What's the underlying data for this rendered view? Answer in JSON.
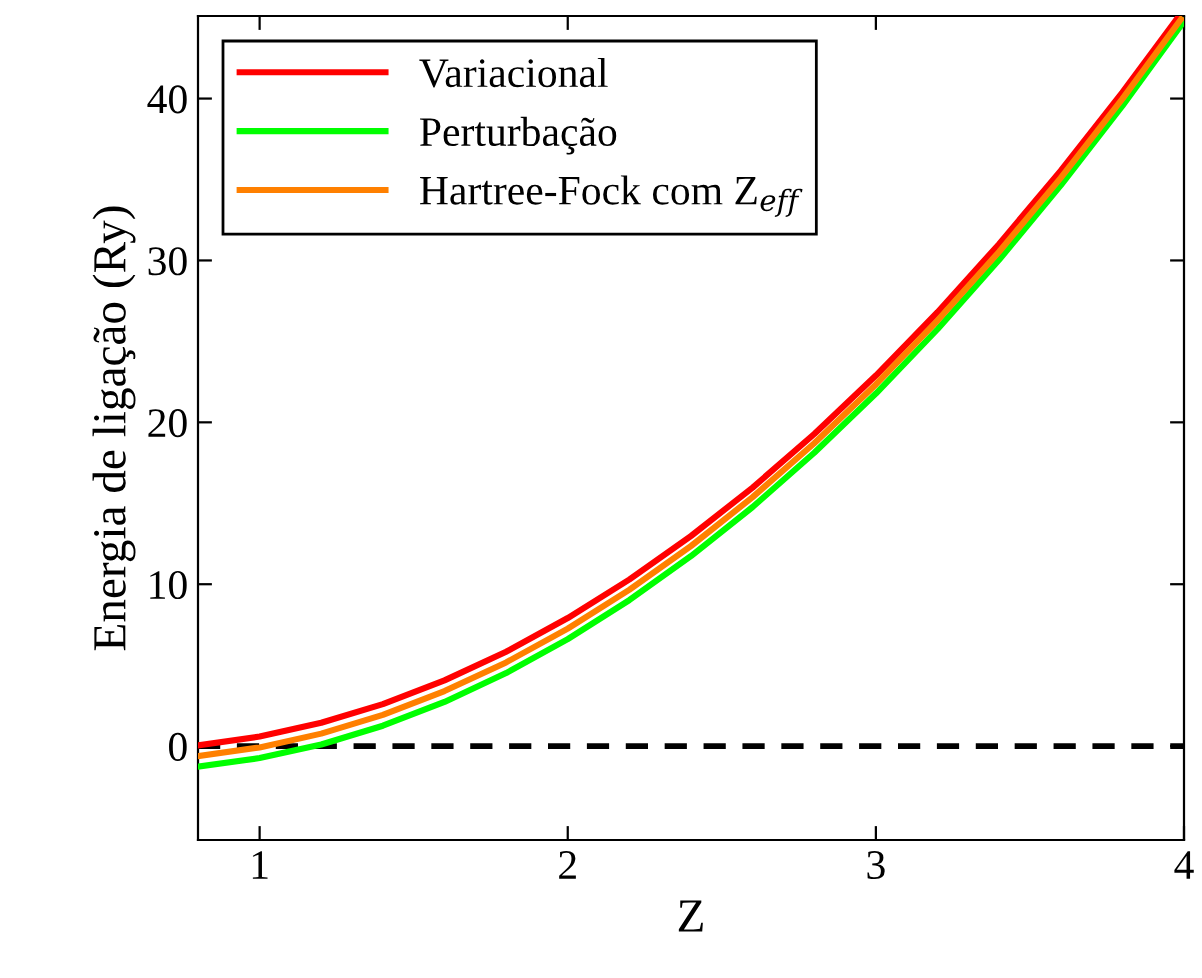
{
  "chart_data": {
    "type": "line",
    "xlabel": "Z",
    "ylabel": "Energia de ligação (Ry)",
    "x": [
      0.8,
      1.0,
      1.2,
      1.4,
      1.6,
      1.8,
      2.0,
      2.2,
      2.4,
      2.6,
      2.8,
      3.0,
      3.2,
      3.4,
      3.6,
      3.8,
      3.98
    ],
    "series": [
      {
        "name": "Variacional",
        "color": "#ff0000",
        "values": [
          0.04,
          0.59,
          1.44,
          2.59,
          4.06,
          5.83,
          7.91,
          10.29,
          12.98,
          15.97,
          19.28,
          22.89,
          26.8,
          31.02,
          35.55,
          40.38,
          45.0
        ]
      },
      {
        "name": "Perturbação",
        "color": "#00ff00",
        "x": [
          0.8,
          1.0,
          1.2,
          1.4,
          1.6,
          1.8,
          2.0,
          2.2,
          2.4,
          2.6,
          2.8,
          3.0,
          3.2,
          3.4,
          3.6,
          3.8,
          4.0
        ],
        "values": [
          -1.27,
          -0.74,
          0.1,
          1.26,
          2.73,
          4.51,
          6.61,
          9.02,
          11.74,
          14.77,
          18.12,
          21.78,
          25.75,
          30.04,
          34.64,
          39.55,
          44.77
        ]
      },
      {
        "name": "Hartree-Fock com Z$_{eff}$",
        "color": "#ff8000",
        "x": [
          0.8,
          1.0,
          1.2,
          1.4,
          1.6,
          1.8,
          2.0,
          2.2,
          2.4,
          2.6,
          2.8,
          3.0,
          3.2,
          3.4,
          3.6,
          3.8,
          3.99
        ],
        "values": [
          -0.62,
          -0.08,
          0.77,
          1.93,
          3.4,
          5.17,
          7.26,
          9.66,
          12.36,
          15.38,
          18.71,
          22.34,
          26.29,
          30.54,
          35.1,
          39.98,
          44.89
        ]
      }
    ],
    "xlim": [
      0.8,
      4
    ],
    "xticks": [
      1,
      2,
      3,
      4
    ],
    "ylim": [
      -5.8,
      45.1
    ],
    "yticks": [
      0,
      10,
      20,
      30,
      40
    ],
    "ref_lines": [
      {
        "axis": "y",
        "value": 0,
        "color": "#000000",
        "line_style": "dashed"
      }
    ],
    "legend": "top left",
    "grid": false,
    "marker": "none",
    "line_style": "solid"
  }
}
